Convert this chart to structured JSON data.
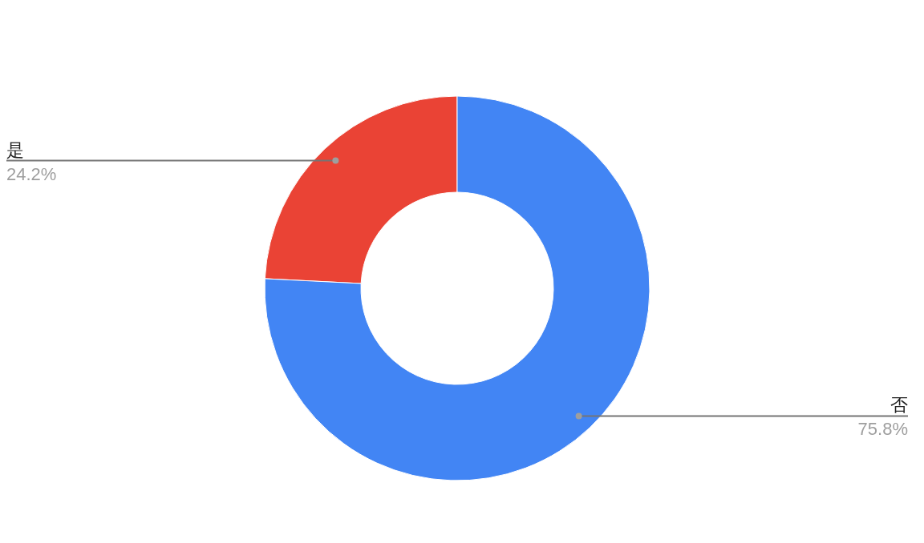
{
  "chart_data": {
    "type": "donut",
    "categories": [
      "是",
      "否"
    ],
    "values": [
      24.2,
      75.8
    ],
    "colors": [
      "#ea4335",
      "#4285f4"
    ],
    "value_labels": [
      "24.2%",
      "75.8%"
    ]
  }
}
